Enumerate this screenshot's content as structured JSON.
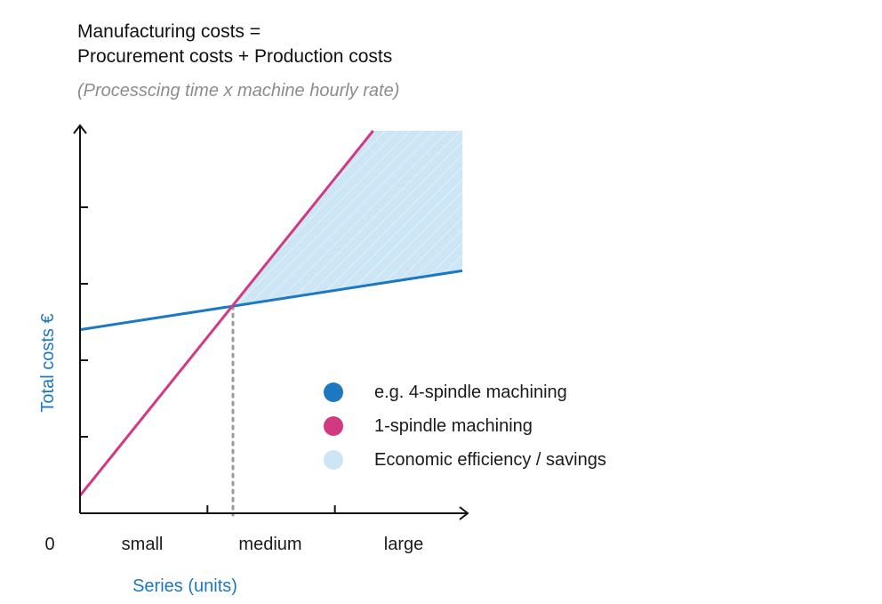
{
  "chart_data": {
    "type": "line",
    "title_lines": [
      "Manufacturing costs =",
      "Procurement costs + Production costs"
    ],
    "subtitle": "(Processcing time x machine hourly rate)",
    "xlabel": "Series (units)",
    "ylabel": "Total costs €",
    "origin_label": "0",
    "x_categories": [
      "small",
      "medium",
      "large"
    ],
    "xlim": [
      0,
      3
    ],
    "ylim": [
      0,
      5
    ],
    "x_ticks": [
      1,
      2
    ],
    "y_ticks": [
      1,
      2,
      3,
      4
    ],
    "break_even_x": 1.2,
    "series": [
      {
        "name": "e.g. 4-spindle machining",
        "color": "#1b78c1",
        "points": [
          [
            0,
            2.4
          ],
          [
            3,
            3.17
          ]
        ]
      },
      {
        "name": "1-spindle machining",
        "color": "#d13a82",
        "points": [
          [
            0,
            0.23
          ],
          [
            2.3,
            5.0
          ]
        ]
      }
    ],
    "savings_area": {
      "name": "Economic efficiency / savings",
      "color": "#cce6f5",
      "points": [
        [
          1.2,
          2.69
        ],
        [
          2.3,
          5.0
        ],
        [
          3,
          5.0
        ],
        [
          3,
          3.17
        ]
      ]
    },
    "legend": [
      {
        "label": "e.g. 4-spindle machining",
        "color": "#1b78c1"
      },
      {
        "label": "1-spindle machining",
        "color": "#d13a82"
      },
      {
        "label": "Economic efficiency / savings",
        "color": "#cce6f5"
      }
    ]
  }
}
